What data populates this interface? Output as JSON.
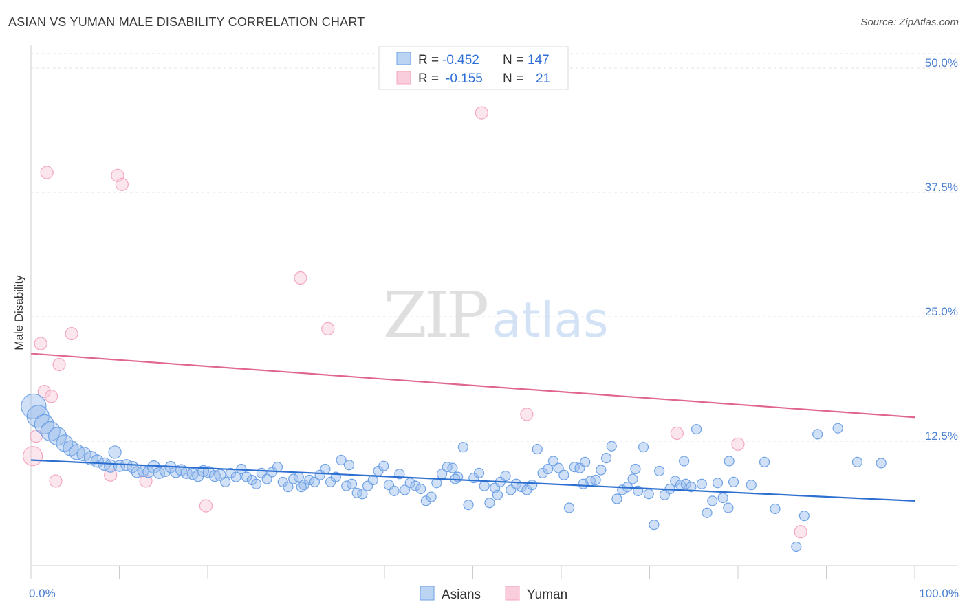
{
  "title": "ASIAN VS YUMAN MALE DISABILITY CORRELATION CHART",
  "source": "Source: ZipAtlas.com",
  "watermark": {
    "zip": "ZIP",
    "atlas": "atlas"
  },
  "colors": {
    "asian": "#6fa2e6",
    "asian_line": "#2d6fd0",
    "yuman": "#f4a7bf",
    "yuman_line": "#e0668f",
    "tick": "#4a7fd0"
  },
  "legend": {
    "rows": [
      {
        "r_label": "R =",
        "r_value": "-0.452",
        "n_label": "N =",
        "n_value": "147"
      },
      {
        "r_label": "R =",
        "r_value": "-0.155",
        "n_label": "N =",
        "n_value": "21"
      }
    ]
  },
  "bottom_legend": [
    "Asians",
    "Yuman"
  ],
  "chart_data": {
    "type": "scatter",
    "ylabel": "Male Disability",
    "xlim": [
      0,
      100
    ],
    "ylim": [
      0,
      52
    ],
    "x_tick_labels": [
      "0.0%",
      "100.0%"
    ],
    "y_ticks": [
      12.5,
      25.0,
      37.5,
      50.0
    ],
    "y_tick_labels": [
      "12.5%",
      "25.0%",
      "37.5%",
      "50.0%"
    ],
    "grid": true,
    "series": [
      {
        "name": "Asians",
        "trend": [
          [
            0,
            10.6
          ],
          [
            100,
            6.5
          ]
        ],
        "points": [
          [
            0.3,
            16.0,
            18
          ],
          [
            0.8,
            15.0,
            16
          ],
          [
            1.5,
            14.2,
            14
          ],
          [
            2.2,
            13.5,
            14
          ],
          [
            3,
            13,
            13
          ],
          [
            3.8,
            12.3,
            12
          ],
          [
            4.5,
            11.8,
            11
          ],
          [
            5.2,
            11.4,
            11
          ],
          [
            6,
            11.2,
            10
          ],
          [
            6.8,
            10.8,
            10
          ],
          [
            7.5,
            10.5,
            9
          ],
          [
            8.3,
            10.2,
            9
          ],
          [
            9,
            10.0,
            9
          ],
          [
            9.5,
            11.4,
            9
          ],
          [
            10,
            10.0,
            8
          ],
          [
            10.8,
            10.1,
            8
          ],
          [
            11.5,
            9.9,
            8
          ],
          [
            12,
            9.4,
            8
          ],
          [
            12.7,
            9.5,
            8
          ],
          [
            13.3,
            9.4,
            8
          ],
          [
            13.9,
            9.9,
            9
          ],
          [
            14.5,
            9.3,
            8
          ],
          [
            15.2,
            9.5,
            8
          ],
          [
            15.8,
            9.9,
            8
          ],
          [
            16.4,
            9.4,
            8
          ],
          [
            17,
            9.6,
            8
          ],
          [
            17.6,
            9.3,
            8
          ],
          [
            18.3,
            9.2,
            8
          ],
          [
            18.9,
            9.0,
            8
          ],
          [
            19.5,
            9.5,
            8
          ],
          [
            20.1,
            9.4,
            8
          ],
          [
            20.8,
            9.0,
            8
          ],
          [
            21.4,
            9.1,
            8
          ],
          [
            22,
            8.4,
            7
          ],
          [
            22.6,
            9.3,
            7
          ],
          [
            23.2,
            8.9,
            7
          ],
          [
            23.8,
            9.7,
            7
          ],
          [
            24.4,
            8.9,
            7
          ],
          [
            25,
            8.6,
            7
          ],
          [
            25.5,
            8.2,
            7
          ],
          [
            26.1,
            9.3,
            7
          ],
          [
            26.7,
            8.7,
            7
          ],
          [
            27.3,
            9.4,
            7
          ],
          [
            27.9,
            9.9,
            7
          ],
          [
            28.5,
            8.4,
            7
          ],
          [
            29.1,
            7.9,
            7
          ],
          [
            29.7,
            8.7,
            7
          ],
          [
            30.3,
            8.9,
            7
          ],
          [
            30.9,
            8.1,
            7
          ],
          [
            31.5,
            8.6,
            7
          ],
          [
            32.1,
            8.4,
            7
          ],
          [
            32.7,
            9.1,
            7
          ],
          [
            33.3,
            9.7,
            7
          ],
          [
            33.9,
            8.4,
            7
          ],
          [
            34.5,
            8.9,
            7
          ],
          [
            35.1,
            10.6,
            7
          ],
          [
            35.7,
            8.0,
            7
          ],
          [
            36.3,
            8.2,
            7
          ],
          [
            36.9,
            7.3,
            7
          ],
          [
            37.5,
            7.2,
            7
          ],
          [
            38.1,
            8.0,
            7
          ],
          [
            38.7,
            8.6,
            7
          ],
          [
            39.3,
            9.5,
            7
          ],
          [
            39.9,
            10.0,
            7
          ],
          [
            40.5,
            8.1,
            7
          ],
          [
            41.1,
            7.5,
            7
          ],
          [
            41.7,
            9.2,
            7
          ],
          [
            42.3,
            7.6,
            7
          ],
          [
            42.9,
            8.3,
            7
          ],
          [
            43.5,
            8.0,
            7
          ],
          [
            44.1,
            7.7,
            7
          ],
          [
            44.7,
            6.5,
            7
          ],
          [
            45.3,
            6.9,
            7
          ],
          [
            45.9,
            8.3,
            7
          ],
          [
            46.5,
            9.2,
            7
          ],
          [
            47.1,
            9.9,
            7
          ],
          [
            47.7,
            9.8,
            7
          ],
          [
            48.3,
            8.9,
            7
          ],
          [
            48.9,
            11.9,
            7
          ],
          [
            49.5,
            6.1,
            7
          ],
          [
            50.1,
            8.8,
            7
          ],
          [
            50.7,
            9.3,
            7
          ],
          [
            51.3,
            8.0,
            7
          ],
          [
            51.9,
            6.3,
            7
          ],
          [
            52.5,
            7.8,
            7
          ],
          [
            53.1,
            8.4,
            7
          ],
          [
            53.7,
            9.0,
            7
          ],
          [
            54.3,
            7.6,
            7
          ],
          [
            54.9,
            8.2,
            7
          ],
          [
            55.5,
            7.9,
            7
          ],
          [
            56.1,
            7.6,
            7
          ],
          [
            56.7,
            8.1,
            7
          ],
          [
            57.3,
            11.7,
            7
          ],
          [
            57.9,
            9.3,
            7
          ],
          [
            58.5,
            9.7,
            7
          ],
          [
            59.1,
            10.5,
            7
          ],
          [
            59.7,
            9.8,
            7
          ],
          [
            60.3,
            9.1,
            7
          ],
          [
            60.9,
            5.8,
            7
          ],
          [
            61.5,
            9.9,
            7
          ],
          [
            62.1,
            9.8,
            7
          ],
          [
            62.7,
            10.4,
            7
          ],
          [
            63.3,
            8.5,
            7
          ],
          [
            63.9,
            8.6,
            7
          ],
          [
            64.5,
            9.6,
            7
          ],
          [
            65.1,
            10.8,
            7
          ],
          [
            65.7,
            12.0,
            7
          ],
          [
            66.3,
            6.7,
            7
          ],
          [
            66.9,
            7.6,
            7
          ],
          [
            67.5,
            7.9,
            7
          ],
          [
            68.1,
            8.7,
            7
          ],
          [
            68.7,
            7.5,
            7
          ],
          [
            69.3,
            11.9,
            7
          ],
          [
            69.9,
            7.2,
            7
          ],
          [
            70.5,
            4.1,
            7
          ],
          [
            71.1,
            9.5,
            7
          ],
          [
            71.7,
            7.1,
            7
          ],
          [
            72.3,
            7.7,
            7
          ],
          [
            72.9,
            8.5,
            7
          ],
          [
            73.5,
            8.1,
            7
          ],
          [
            74.1,
            8.2,
            7
          ],
          [
            74.7,
            7.9,
            7
          ],
          [
            75.3,
            13.7,
            7
          ],
          [
            75.9,
            8.2,
            7
          ],
          [
            76.5,
            5.3,
            7
          ],
          [
            77.1,
            6.5,
            7
          ],
          [
            77.7,
            8.3,
            7
          ],
          [
            78.3,
            6.8,
            7
          ],
          [
            78.9,
            5.8,
            7
          ],
          [
            79.5,
            8.4,
            7
          ],
          [
            81.5,
            8.1,
            7
          ],
          [
            83,
            10.4,
            7
          ],
          [
            84.2,
            5.7,
            7
          ],
          [
            86.6,
            1.9,
            7
          ],
          [
            87.5,
            5.0,
            7
          ],
          [
            89,
            13.2,
            7
          ],
          [
            91.3,
            13.8,
            7
          ],
          [
            93.5,
            10.4,
            7
          ],
          [
            96.2,
            10.3,
            7
          ],
          [
            52.8,
            7.1,
            7
          ],
          [
            30.6,
            7.9,
            7
          ],
          [
            36,
            10.1,
            7
          ],
          [
            48,
            8.7,
            7
          ],
          [
            62.5,
            8.2,
            7
          ],
          [
            68.4,
            9.7,
            7
          ],
          [
            73.9,
            10.5,
            7
          ],
          [
            79,
            10.5,
            7
          ]
        ]
      },
      {
        "name": "Yuman",
        "trend": [
          [
            0,
            21.3
          ],
          [
            100,
            14.9
          ]
        ],
        "points": [
          [
            0.2,
            11.0,
            14
          ],
          [
            0.6,
            13.0,
            9
          ],
          [
            1.1,
            22.3,
            9
          ],
          [
            1.5,
            17.5,
            9
          ],
          [
            1.8,
            39.5,
            9
          ],
          [
            2.3,
            17.0,
            9
          ],
          [
            2.8,
            8.5,
            9
          ],
          [
            3.2,
            20.2,
            9
          ],
          [
            4.6,
            23.3,
            9
          ],
          [
            9,
            9.1,
            9
          ],
          [
            9.8,
            39.2,
            9
          ],
          [
            10.3,
            38.3,
            9
          ],
          [
            13,
            8.5,
            9
          ],
          [
            19.8,
            6.0,
            9
          ],
          [
            30.5,
            28.9,
            9
          ],
          [
            33.6,
            23.8,
            9
          ],
          [
            51,
            45.5,
            9
          ],
          [
            56.1,
            15.2,
            9
          ],
          [
            73.1,
            13.3,
            9
          ],
          [
            80,
            12.2,
            9
          ],
          [
            87.1,
            3.4,
            9
          ]
        ]
      }
    ]
  }
}
